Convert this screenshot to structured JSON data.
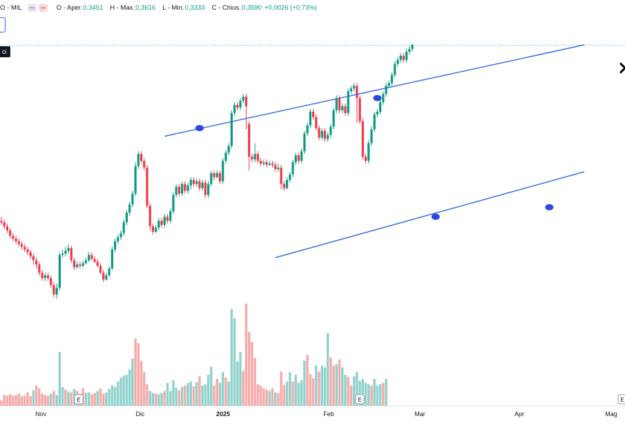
{
  "legend": {
    "symbol": "O - MIL",
    "open_label": "O - Aper.",
    "open": "0,3451",
    "high_label": "H - Max.",
    "high": "0,3616",
    "low_label": "L - Min.",
    "low": "0,3333",
    "close_label": "C - Chius.",
    "close": "0,3590",
    "change": "+0,0026 (+0,73%)"
  },
  "tag": {
    "text": "ci"
  },
  "colors": {
    "up": "#089981",
    "down": "#f23645",
    "vol_up": "#8fd1cb",
    "vol_down": "#f7a9a8",
    "trendline": "#3d6fd9",
    "anchor": "#2f46e0"
  },
  "chart_data": {
    "type": "candlestick",
    "x_ticks": [
      "Nov",
      "Dic",
      "2025",
      "Feb",
      "Mar",
      "Apr",
      "Mag"
    ],
    "earnings_markers": [
      "E",
      "E",
      "E"
    ],
    "ylim": [
      0.0,
      0.372
    ],
    "candles": [
      [
        0.243,
        0.242,
        0.246,
        0.24
      ],
      [
        0.242,
        0.239,
        0.244,
        0.237
      ],
      [
        0.239,
        0.236,
        0.241,
        0.234
      ],
      [
        0.236,
        0.232,
        0.238,
        0.23
      ],
      [
        0.232,
        0.23,
        0.234,
        0.228
      ],
      [
        0.23,
        0.228,
        0.232,
        0.226
      ],
      [
        0.228,
        0.226,
        0.23,
        0.224
      ],
      [
        0.226,
        0.224,
        0.228,
        0.222
      ],
      [
        0.224,
        0.222,
        0.226,
        0.22
      ],
      [
        0.222,
        0.22,
        0.224,
        0.218
      ],
      [
        0.22,
        0.217,
        0.222,
        0.215
      ],
      [
        0.217,
        0.214,
        0.219,
        0.211
      ],
      [
        0.214,
        0.211,
        0.216,
        0.208
      ],
      [
        0.211,
        0.205,
        0.213,
        0.203
      ],
      [
        0.205,
        0.201,
        0.207,
        0.199
      ],
      [
        0.201,
        0.203,
        0.205,
        0.199
      ],
      [
        0.203,
        0.201,
        0.205,
        0.199
      ],
      [
        0.201,
        0.196,
        0.203,
        0.194
      ],
      [
        0.196,
        0.189,
        0.198,
        0.187
      ],
      [
        0.189,
        0.194,
        0.197,
        0.186
      ],
      [
        0.194,
        0.218,
        0.22,
        0.192
      ],
      [
        0.218,
        0.219,
        0.222,
        0.216
      ],
      [
        0.219,
        0.221,
        0.224,
        0.217
      ],
      [
        0.221,
        0.223,
        0.226,
        0.219
      ],
      [
        0.223,
        0.214,
        0.225,
        0.212
      ],
      [
        0.214,
        0.209,
        0.216,
        0.207
      ],
      [
        0.209,
        0.211,
        0.213,
        0.208
      ],
      [
        0.211,
        0.21,
        0.213,
        0.208
      ],
      [
        0.21,
        0.212,
        0.214,
        0.209
      ],
      [
        0.212,
        0.214,
        0.216,
        0.211
      ],
      [
        0.214,
        0.218,
        0.22,
        0.213
      ],
      [
        0.218,
        0.215,
        0.22,
        0.214
      ],
      [
        0.215,
        0.213,
        0.217,
        0.212
      ],
      [
        0.213,
        0.21,
        0.215,
        0.209
      ],
      [
        0.21,
        0.205,
        0.212,
        0.204
      ],
      [
        0.205,
        0.2,
        0.207,
        0.198
      ],
      [
        0.2,
        0.203,
        0.205,
        0.199
      ],
      [
        0.203,
        0.208,
        0.21,
        0.202
      ],
      [
        0.208,
        0.222,
        0.224,
        0.207
      ],
      [
        0.222,
        0.228,
        0.23,
        0.22
      ],
      [
        0.228,
        0.231,
        0.233,
        0.226
      ],
      [
        0.231,
        0.234,
        0.236,
        0.229
      ],
      [
        0.234,
        0.242,
        0.244,
        0.232
      ],
      [
        0.242,
        0.249,
        0.251,
        0.24
      ],
      [
        0.249,
        0.255,
        0.257,
        0.247
      ],
      [
        0.255,
        0.263,
        0.265,
        0.253
      ],
      [
        0.263,
        0.283,
        0.286,
        0.261
      ],
      [
        0.283,
        0.292,
        0.294,
        0.281
      ],
      [
        0.292,
        0.287,
        0.294,
        0.285
      ],
      [
        0.287,
        0.282,
        0.289,
        0.28
      ],
      [
        0.282,
        0.254,
        0.284,
        0.252
      ],
      [
        0.254,
        0.239,
        0.256,
        0.236
      ],
      [
        0.239,
        0.235,
        0.241,
        0.233
      ],
      [
        0.235,
        0.238,
        0.24,
        0.234
      ],
      [
        0.238,
        0.243,
        0.245,
        0.236
      ],
      [
        0.243,
        0.24,
        0.245,
        0.238
      ],
      [
        0.24,
        0.246,
        0.248,
        0.238
      ],
      [
        0.246,
        0.243,
        0.248,
        0.241
      ],
      [
        0.243,
        0.25,
        0.252,
        0.241
      ],
      [
        0.25,
        0.262,
        0.264,
        0.248
      ],
      [
        0.262,
        0.268,
        0.27,
        0.26
      ],
      [
        0.268,
        0.263,
        0.27,
        0.261
      ],
      [
        0.263,
        0.27,
        0.272,
        0.261
      ],
      [
        0.27,
        0.265,
        0.272,
        0.263
      ],
      [
        0.265,
        0.269,
        0.271,
        0.263
      ],
      [
        0.269,
        0.273,
        0.275,
        0.266
      ],
      [
        0.273,
        0.27,
        0.275,
        0.268
      ],
      [
        0.27,
        0.272,
        0.274,
        0.268
      ],
      [
        0.272,
        0.267,
        0.274,
        0.265
      ],
      [
        0.267,
        0.271,
        0.273,
        0.265
      ],
      [
        0.271,
        0.262,
        0.273,
        0.26
      ],
      [
        0.262,
        0.27,
        0.272,
        0.26
      ],
      [
        0.27,
        0.278,
        0.28,
        0.268
      ],
      [
        0.278,
        0.275,
        0.28,
        0.273
      ],
      [
        0.275,
        0.278,
        0.28,
        0.274
      ],
      [
        0.278,
        0.272,
        0.28,
        0.27
      ],
      [
        0.272,
        0.287,
        0.289,
        0.27
      ],
      [
        0.287,
        0.293,
        0.295,
        0.285
      ],
      [
        0.293,
        0.298,
        0.3,
        0.291
      ],
      [
        0.298,
        0.322,
        0.324,
        0.296
      ],
      [
        0.322,
        0.328,
        0.33,
        0.32
      ],
      [
        0.328,
        0.326,
        0.33,
        0.324
      ],
      [
        0.326,
        0.331,
        0.333,
        0.324
      ],
      [
        0.331,
        0.334,
        0.336,
        0.329
      ],
      [
        0.334,
        0.327,
        0.336,
        0.31
      ],
      [
        0.314,
        0.29,
        0.316,
        0.28
      ],
      [
        0.29,
        0.288,
        0.292,
        0.286
      ],
      [
        0.288,
        0.292,
        0.3,
        0.286
      ],
      [
        0.292,
        0.287,
        0.294,
        0.285
      ],
      [
        0.287,
        0.285,
        0.289,
        0.283
      ],
      [
        0.285,
        0.286,
        0.288,
        0.283
      ],
      [
        0.286,
        0.284,
        0.288,
        0.282
      ],
      [
        0.284,
        0.285,
        0.287,
        0.283
      ],
      [
        0.285,
        0.284,
        0.287,
        0.282
      ],
      [
        0.284,
        0.281,
        0.286,
        0.279
      ],
      [
        0.281,
        0.282,
        0.285,
        0.279
      ],
      [
        0.282,
        0.27,
        0.284,
        0.266
      ],
      [
        0.27,
        0.267,
        0.272,
        0.265
      ],
      [
        0.267,
        0.273,
        0.275,
        0.266
      ],
      [
        0.273,
        0.277,
        0.279,
        0.271
      ],
      [
        0.277,
        0.286,
        0.288,
        0.275
      ],
      [
        0.286,
        0.291,
        0.293,
        0.284
      ],
      [
        0.291,
        0.287,
        0.293,
        0.285
      ],
      [
        0.287,
        0.294,
        0.296,
        0.285
      ],
      [
        0.294,
        0.307,
        0.309,
        0.292
      ],
      [
        0.307,
        0.313,
        0.315,
        0.305
      ],
      [
        0.313,
        0.323,
        0.325,
        0.311
      ],
      [
        0.323,
        0.319,
        0.325,
        0.317
      ],
      [
        0.319,
        0.311,
        0.321,
        0.309
      ],
      [
        0.311,
        0.304,
        0.313,
        0.302
      ],
      [
        0.304,
        0.309,
        0.311,
        0.302
      ],
      [
        0.309,
        0.303,
        0.311,
        0.301
      ],
      [
        0.303,
        0.306,
        0.308,
        0.301
      ],
      [
        0.306,
        0.312,
        0.314,
        0.304
      ],
      [
        0.312,
        0.324,
        0.326,
        0.31
      ],
      [
        0.324,
        0.333,
        0.335,
        0.322
      ],
      [
        0.333,
        0.324,
        0.335,
        0.322
      ],
      [
        0.324,
        0.327,
        0.329,
        0.322
      ],
      [
        0.327,
        0.322,
        0.329,
        0.32
      ],
      [
        0.322,
        0.338,
        0.34,
        0.32
      ],
      [
        0.338,
        0.34,
        0.342,
        0.336
      ],
      [
        0.34,
        0.342,
        0.344,
        0.338
      ],
      [
        0.342,
        0.333,
        0.344,
        0.315
      ],
      [
        0.333,
        0.316,
        0.335,
        0.314
      ],
      [
        0.316,
        0.29,
        0.318,
        0.288
      ],
      [
        0.29,
        0.287,
        0.292,
        0.285
      ],
      [
        0.287,
        0.3,
        0.302,
        0.285
      ],
      [
        0.3,
        0.31,
        0.312,
        0.298
      ],
      [
        0.31,
        0.321,
        0.323,
        0.308
      ],
      [
        0.321,
        0.323,
        0.325,
        0.319
      ],
      [
        0.323,
        0.33,
        0.332,
        0.321
      ],
      [
        0.33,
        0.336,
        0.338,
        0.328
      ],
      [
        0.336,
        0.342,
        0.344,
        0.334
      ],
      [
        0.342,
        0.344,
        0.346,
        0.34
      ],
      [
        0.344,
        0.35,
        0.352,
        0.342
      ],
      [
        0.35,
        0.358,
        0.36,
        0.348
      ],
      [
        0.358,
        0.361,
        0.363,
        0.356
      ],
      [
        0.361,
        0.364,
        0.366,
        0.359
      ],
      [
        0.364,
        0.361,
        0.366,
        0.359
      ],
      [
        0.361,
        0.367,
        0.369,
        0.359
      ],
      [
        0.367,
        0.369,
        0.371,
        0.365
      ],
      [
        0.369,
        0.372,
        0.373,
        0.367
      ]
    ],
    "volumes": [
      [
        0.8,
        0
      ],
      [
        1.6,
        0
      ],
      [
        1.5,
        0
      ],
      [
        1.7,
        0
      ],
      [
        1.5,
        0
      ],
      [
        1.6,
        0
      ],
      [
        1.8,
        0
      ],
      [
        1.4,
        0
      ],
      [
        1.5,
        0
      ],
      [
        2.0,
        0
      ],
      [
        1.4,
        0
      ],
      [
        2.3,
        1
      ],
      [
        3.0,
        0
      ],
      [
        2.6,
        0
      ],
      [
        1.8,
        0
      ],
      [
        1.6,
        0
      ],
      [
        1.5,
        0
      ],
      [
        1.8,
        1
      ],
      [
        2.2,
        0
      ],
      [
        1.6,
        1
      ],
      [
        8.0,
        1
      ],
      [
        2.8,
        1
      ],
      [
        2.4,
        0
      ],
      [
        2.1,
        1
      ],
      [
        2.0,
        0
      ],
      [
        2.5,
        1
      ],
      [
        2.2,
        0
      ],
      [
        1.8,
        1
      ],
      [
        2.6,
        0
      ],
      [
        1.9,
        1
      ],
      [
        2.0,
        1
      ],
      [
        1.7,
        0
      ],
      [
        1.9,
        0
      ],
      [
        2.2,
        1
      ],
      [
        2.6,
        0
      ],
      [
        1.8,
        0
      ],
      [
        2.0,
        1
      ],
      [
        2.5,
        1
      ],
      [
        3.0,
        1
      ],
      [
        2.8,
        1
      ],
      [
        3.6,
        1
      ],
      [
        4.2,
        1
      ],
      [
        4.5,
        1
      ],
      [
        4.6,
        1
      ],
      [
        5.4,
        1
      ],
      [
        7.0,
        1
      ],
      [
        10.0,
        0
      ],
      [
        9.3,
        0
      ],
      [
        6.7,
        0
      ],
      [
        5.0,
        0
      ],
      [
        3.2,
        0
      ],
      [
        2.2,
        1
      ],
      [
        1.9,
        1
      ],
      [
        1.8,
        0
      ],
      [
        1.7,
        1
      ],
      [
        1.9,
        1
      ],
      [
        2.2,
        0
      ],
      [
        3.4,
        1
      ],
      [
        2.2,
        1
      ],
      [
        3.8,
        1
      ],
      [
        2.7,
        1
      ],
      [
        2.3,
        0
      ],
      [
        2.8,
        1
      ],
      [
        3.0,
        0
      ],
      [
        3.4,
        1
      ],
      [
        3.6,
        1
      ],
      [
        2.9,
        0
      ],
      [
        3.5,
        1
      ],
      [
        4.4,
        0
      ],
      [
        3.0,
        1
      ],
      [
        3.2,
        1
      ],
      [
        4.6,
        1
      ],
      [
        5.8,
        1
      ],
      [
        3.0,
        0
      ],
      [
        4.0,
        0
      ],
      [
        3.4,
        1
      ],
      [
        5.0,
        1
      ],
      [
        4.2,
        0
      ],
      [
        3.6,
        1
      ],
      [
        14.4,
        1
      ],
      [
        13.0,
        1
      ],
      [
        6.6,
        1
      ],
      [
        8.0,
        1
      ],
      [
        5.2,
        0
      ],
      [
        15.2,
        0
      ],
      [
        11.0,
        0
      ],
      [
        9.5,
        0
      ],
      [
        7.1,
        0
      ],
      [
        3.2,
        0
      ],
      [
        3.0,
        0
      ],
      [
        2.6,
        0
      ],
      [
        2.4,
        0
      ],
      [
        2.2,
        1
      ],
      [
        2.6,
        0
      ],
      [
        2.0,
        1
      ],
      [
        1.9,
        0
      ],
      [
        5.1,
        0
      ],
      [
        3.1,
        0
      ],
      [
        3.6,
        1
      ],
      [
        5.0,
        1
      ],
      [
        3.6,
        0
      ],
      [
        4.6,
        1
      ],
      [
        3.4,
        1
      ],
      [
        3.8,
        1
      ],
      [
        6.7,
        1
      ],
      [
        7.6,
        0
      ],
      [
        4.7,
        0
      ],
      [
        4.1,
        0
      ],
      [
        6.0,
        1
      ],
      [
        5.1,
        0
      ],
      [
        6.0,
        1
      ],
      [
        5.7,
        1
      ],
      [
        10.8,
        1
      ],
      [
        7.2,
        0
      ],
      [
        6.0,
        0
      ],
      [
        6.2,
        1
      ],
      [
        6.9,
        0
      ],
      [
        5.7,
        1
      ],
      [
        4.6,
        1
      ],
      [
        4.3,
        0
      ],
      [
        3.0,
        0
      ],
      [
        4.4,
        1
      ],
      [
        5.0,
        1
      ],
      [
        3.7,
        1
      ],
      [
        4.0,
        1
      ],
      [
        3.4,
        1
      ],
      [
        3.2,
        1
      ],
      [
        3.0,
        0
      ],
      [
        4.0,
        1
      ],
      [
        3.0,
        1
      ],
      [
        3.2,
        1
      ],
      [
        3.4,
        0
      ],
      [
        4.0,
        1
      ]
    ],
    "trendlines": [
      {
        "name": "upper",
        "points": [
          [
            56,
            0.305
          ],
          [
            200,
            0.372
          ]
        ]
      },
      {
        "name": "lower",
        "points": [
          [
            94,
            0.216
          ],
          [
            200,
            0.279
          ]
        ]
      }
    ],
    "anchors": [
      [
        68,
        0.311
      ],
      [
        129,
        0.333
      ],
      [
        149,
        0.246
      ],
      [
        188,
        0.253
      ]
    ],
    "cross_marker": [
      214,
      0.355
    ],
    "grid": false
  }
}
